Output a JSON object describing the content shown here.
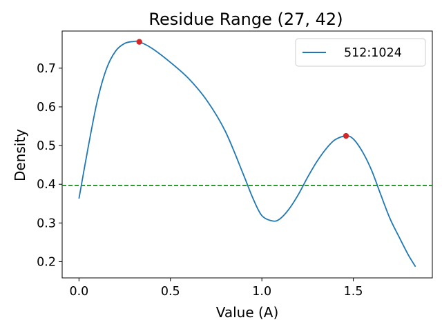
{
  "chart_data": {
    "type": "line",
    "title": "Residue Range (27, 42)",
    "xlabel": "Value (A)",
    "ylabel": "Density",
    "xlim": [
      -0.092,
      1.932
    ],
    "ylim": [
      0.158,
      0.796
    ],
    "xticks": [
      0.0,
      0.5,
      1.0,
      1.5
    ],
    "xtick_labels": [
      "0.0",
      "0.5",
      "1.0",
      "1.5"
    ],
    "yticks": [
      0.2,
      0.3,
      0.4,
      0.5,
      0.6,
      0.7
    ],
    "ytick_labels": [
      "0.2",
      "0.3",
      "0.4",
      "0.5",
      "0.6",
      "0.7"
    ],
    "grid": false,
    "legend_position": "upper right",
    "series": [
      {
        "name": "512:1024",
        "color": "#1f77b4",
        "x": [
          0.0,
          0.05,
          0.1,
          0.15,
          0.2,
          0.25,
          0.3,
          0.33,
          0.4,
          0.5,
          0.6,
          0.7,
          0.8,
          0.9,
          0.95,
          1.0,
          1.06,
          1.1,
          1.15,
          1.2,
          1.25,
          1.3,
          1.35,
          1.4,
          1.46,
          1.5,
          1.55,
          1.6,
          1.65,
          1.7,
          1.75,
          1.8,
          1.84
        ],
        "y": [
          0.363,
          0.495,
          0.615,
          0.698,
          0.744,
          0.764,
          0.769,
          0.768,
          0.751,
          0.715,
          0.673,
          0.616,
          0.537,
          0.424,
          0.365,
          0.319,
          0.305,
          0.311,
          0.337,
          0.374,
          0.418,
          0.458,
          0.491,
          0.515,
          0.525,
          0.517,
          0.484,
          0.436,
          0.373,
          0.312,
          0.264,
          0.218,
          0.187
        ]
      }
    ],
    "peaks": {
      "color": "#d62728",
      "x": [
        0.33,
        1.46
      ],
      "y": [
        0.768,
        0.525
      ]
    },
    "threshold": {
      "y": 0.397,
      "color": "#008000",
      "style": "dashed"
    }
  }
}
